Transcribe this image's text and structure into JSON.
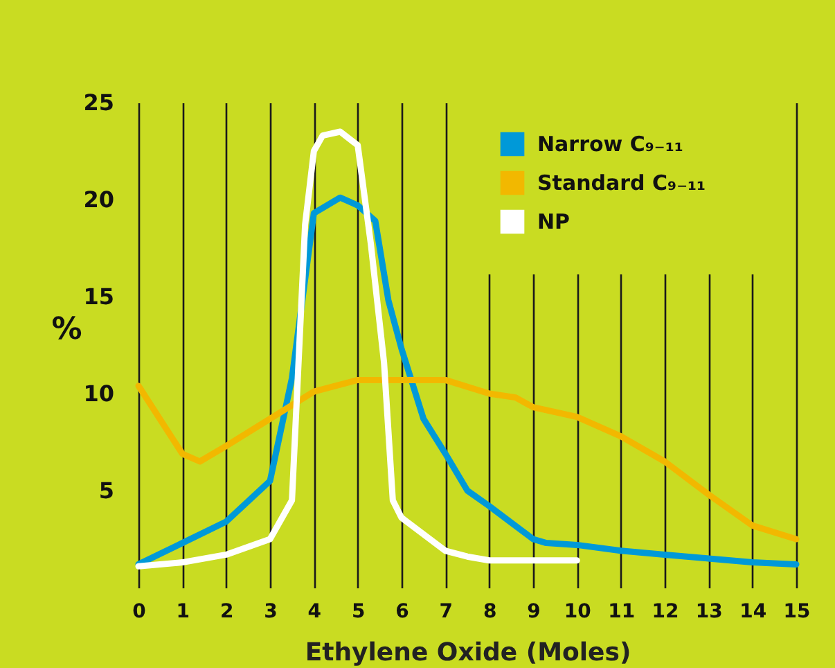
{
  "chart_data": {
    "type": "line",
    "xlabel": "Ethylene Oxide (Moles)",
    "ylabel": "%",
    "xlim": [
      0,
      15
    ],
    "xticks": [
      0,
      1,
      2,
      3,
      4,
      5,
      6,
      7,
      8,
      9,
      10,
      11,
      12,
      13,
      14,
      15
    ],
    "ylim": [
      0,
      25
    ],
    "yticks": [
      5,
      10,
      15,
      20,
      25
    ],
    "grid": "x",
    "legend": "top right",
    "marker": "none",
    "line_style": "solid",
    "series": [
      {
        "name": "Narrow C₉₋₁₁",
        "color": "#0099d8",
        "x": [
          0,
          1,
          2,
          3,
          3.5,
          4,
          4.6,
          5,
          5.4,
          5.7,
          6,
          6.5,
          7,
          7.5,
          8,
          9,
          9.3,
          10,
          11,
          12,
          13,
          14,
          15
        ],
        "values": [
          1.2,
          2.3,
          3.4,
          5.5,
          10.8,
          19.3,
          20.1,
          19.7,
          18.9,
          14.8,
          12.3,
          8.7,
          6.9,
          5.0,
          4.2,
          2.5,
          2.3,
          2.2,
          1.9,
          1.7,
          1.5,
          1.3,
          1.2
        ]
      },
      {
        "name": "Standard C₉₋₁₁",
        "color": "#f2b800",
        "x": [
          0,
          1,
          1.4,
          2,
          3,
          4,
          5,
          6,
          7,
          8,
          8.6,
          9,
          10,
          11,
          12,
          13,
          14,
          15
        ],
        "values": [
          10.4,
          6.9,
          6.5,
          7.3,
          8.7,
          10.1,
          10.7,
          10.7,
          10.7,
          10.0,
          9.8,
          9.3,
          8.8,
          7.8,
          6.5,
          4.8,
          3.2,
          2.5
        ]
      },
      {
        "name": "NP",
        "color": "#ffffff",
        "x": [
          0,
          1,
          2,
          3,
          3.5,
          3.8,
          4,
          4.2,
          4.6,
          5,
          5.3,
          5.6,
          5.8,
          6,
          7,
          7.5,
          8,
          10
        ],
        "values": [
          1.1,
          1.3,
          1.7,
          2.5,
          4.5,
          18.7,
          22.5,
          23.3,
          23.5,
          22.8,
          17.7,
          11.6,
          4.5,
          3.6,
          1.9,
          1.6,
          1.4,
          1.4
        ]
      }
    ]
  }
}
